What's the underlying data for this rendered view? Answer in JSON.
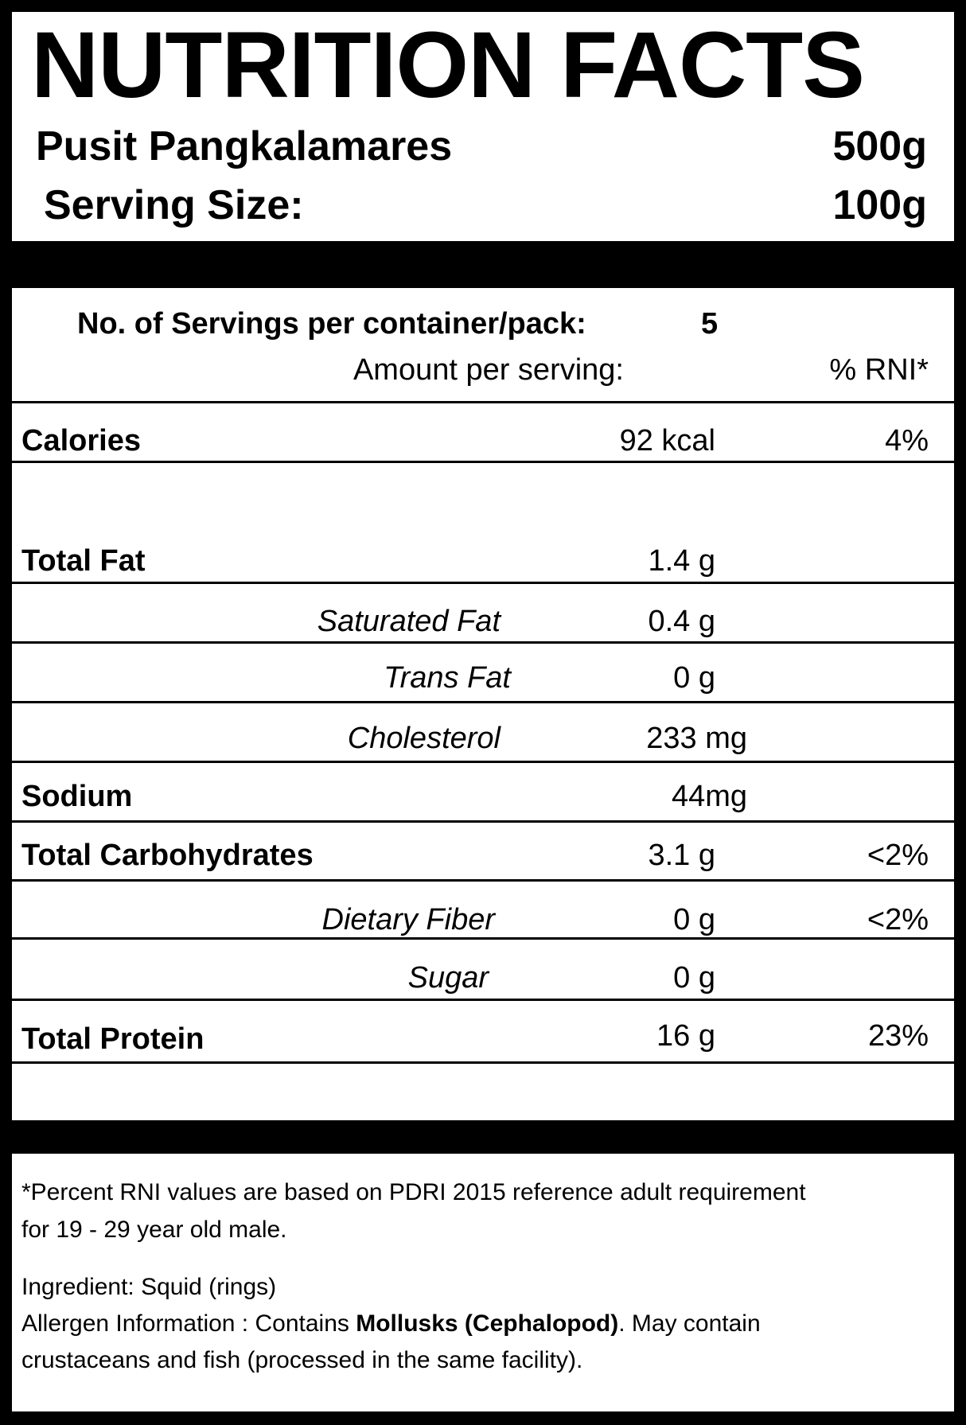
{
  "header": {
    "title": "NUTRITION FACTS",
    "product_name": "Pusit Pangkalamares",
    "product_weight": "500g",
    "serving_size_label": "Serving Size:",
    "serving_size_value": "100g"
  },
  "servings": {
    "label": "No. of Servings per container/pack:",
    "value": "5",
    "amount_per_serving_label": "Amount per serving:",
    "rni_header": "% RNI*"
  },
  "nutrients": [
    {
      "label": "Calories",
      "amount": "92 kcal",
      "rni": "4%"
    },
    {
      "label": "Total Fat",
      "amount": "1.4 g",
      "rni": ""
    },
    {
      "label": "Saturated Fat",
      "amount": "0.4 g",
      "rni": ""
    },
    {
      "label": "Trans Fat",
      "amount": "0 g",
      "rni": ""
    },
    {
      "label": "Cholesterol",
      "amount": "233 mg",
      "rni": ""
    },
    {
      "label": "Sodium",
      "amount": "44mg",
      "rni": ""
    },
    {
      "label": "Total Carbohydrates",
      "amount": "3.1 g",
      "rni": "<2%"
    },
    {
      "label": "Dietary Fiber",
      "amount": "0 g",
      "rni": "<2%"
    },
    {
      "label": "Sugar",
      "amount": "0 g",
      "rni": ""
    },
    {
      "label": "Total Protein",
      "amount": "16 g",
      "rni": "23%"
    }
  ],
  "footer": {
    "rni_note_line1": "*Percent RNI values are based on PDRI 2015 reference adult requirement",
    "rni_note_line2": "for 19 - 29 year old male.",
    "ingredient": "Ingredient: Squid (rings)",
    "allergen_prefix": "Allergen Information : Contains ",
    "allergen_bold": "Mollusks (Cephalopod)",
    "allergen_suffix": ". May contain",
    "allergen_line2": "crustaceans and fish (processed in the same facility)."
  }
}
